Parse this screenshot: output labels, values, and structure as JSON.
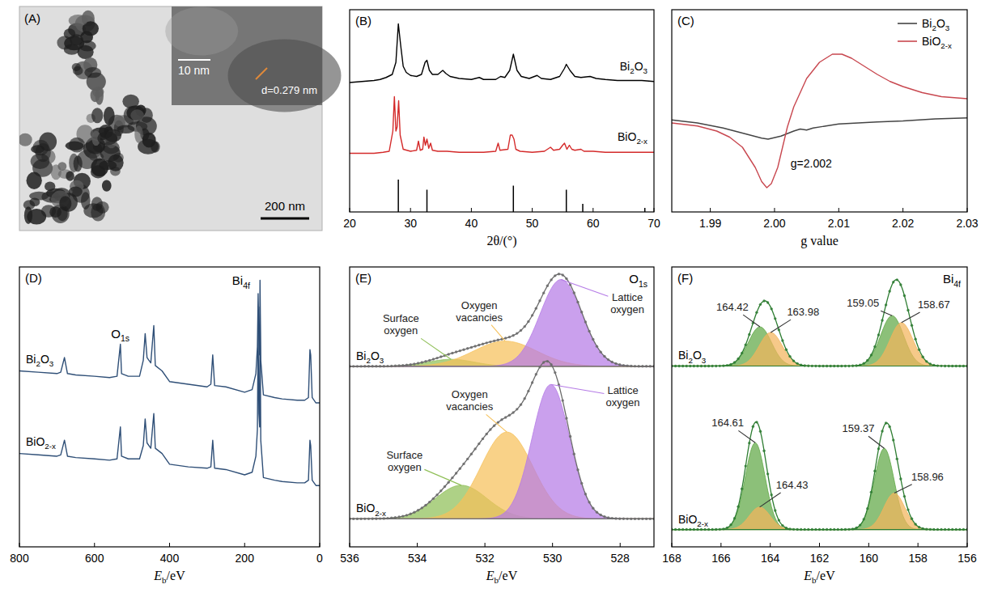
{
  "chart_data": [
    {
      "type": "micrograph",
      "title": "(A)",
      "annotations": [
        "200 nm",
        "10 nm",
        "d=0.279 nm"
      ]
    },
    {
      "type": "line",
      "title": "(B)",
      "x_label": "2θ/(°)",
      "xlim": [
        20,
        70
      ],
      "xticks": [
        20,
        30,
        40,
        50,
        60,
        70
      ],
      "ylim": [
        0,
        100
      ],
      "tick_labels": "x",
      "series": [
        {
          "name": "Bi2O3",
          "color": "#000000",
          "x": [
            20,
            22,
            24,
            25,
            26,
            27,
            27.6,
            28,
            28.4,
            28.8,
            29.3,
            30,
            31,
            31.8,
            32.4,
            32.7,
            33.1,
            33.6,
            34.5,
            35.3,
            35.8,
            36.5,
            38,
            40,
            41.3,
            42,
            44,
            44.8,
            45.5,
            46.3,
            46.9,
            47.5,
            48.2,
            49.5,
            50.8,
            51.5,
            53,
            54.5,
            55.3,
            55.6,
            56.2,
            57,
            58,
            59.5,
            60.5,
            62,
            64,
            66,
            68,
            70
          ],
          "values": [
            64,
            64.5,
            65,
            65.5,
            66.5,
            68,
            74,
            93,
            82,
            72,
            69,
            67.5,
            67,
            68,
            74,
            75,
            70,
            68,
            68,
            70,
            68.5,
            67,
            66,
            65.5,
            66.5,
            65.5,
            65.5,
            67,
            66.5,
            70,
            78,
            70,
            67,
            66,
            67.5,
            66,
            65.5,
            67,
            71,
            73,
            70,
            67,
            66.5,
            67,
            66,
            65.5,
            65,
            65,
            65,
            64.5
          ]
        },
        {
          "name": "BiO2-x",
          "color": "#d42a2a",
          "x": [
            20,
            22,
            24,
            25.5,
            26.5,
            27.1,
            27.35,
            27.6,
            27.8,
            28.05,
            28.3,
            28.8,
            30,
            31,
            31.3,
            31.6,
            32,
            32.2,
            32.45,
            32.7,
            33,
            33.3,
            33.6,
            34.5,
            36,
            38,
            40,
            42,
            44,
            44.4,
            44.7,
            46,
            46.4,
            46.7,
            47,
            47.3,
            48,
            50,
            52,
            53,
            53.5,
            54.5,
            55,
            55.3,
            55.7,
            56.1,
            56.5,
            57,
            58,
            58.5,
            60,
            62,
            64,
            66,
            68,
            70
          ],
          "values": [
            29,
            29,
            29,
            29.5,
            30,
            40,
            57,
            40,
            42,
            55,
            38,
            31,
            30,
            30.5,
            35,
            30.5,
            31,
            37,
            33,
            36,
            31.5,
            34,
            30.5,
            30,
            30,
            29.5,
            29.5,
            29.5,
            30,
            34,
            30.5,
            31,
            38,
            38,
            36,
            31,
            30,
            29.5,
            30,
            32,
            30.5,
            31,
            33,
            34,
            31,
            33,
            31,
            30.5,
            31,
            30,
            30,
            29.5,
            29.5,
            29.5,
            29.5,
            29.5
          ]
        },
        {
          "type": "bar",
          "color": "#000000",
          "x": [
            28.0,
            32.7,
            46.9,
            55.6,
            58.3,
            68.5
          ],
          "values": [
            16,
            11,
            13,
            11,
            4,
            2
          ]
        }
      ]
    },
    {
      "type": "line",
      "title": "(C)",
      "x_label": "g value",
      "xlim": [
        1.984,
        2.03
      ],
      "xticks": [
        1.99,
        {
          "value": 2,
          "label": "2.00"
        },
        2.01,
        2.02,
        2.03
      ],
      "ylim": [
        0,
        100
      ],
      "tick_labels": "x",
      "legend": "top-right",
      "annotations": [
        {
          "text": "g=2.002",
          "x": 2.002
        }
      ],
      "series": [
        {
          "name": "Bi2O3",
          "color": "#444444",
          "x": [
            1.984,
            1.988,
            1.992,
            1.995,
            1.998,
            1.999,
            2.001,
            2.003,
            2.004,
            2.005,
            2.006,
            2.008,
            2.01,
            2.013,
            2.016,
            2.02,
            2.025,
            2.03
          ],
          "values": [
            45.5,
            44,
            41.5,
            39,
            36.5,
            36,
            37.5,
            40,
            41,
            40.5,
            41.5,
            42.5,
            43.5,
            44,
            44.5,
            45,
            46,
            46.5
          ]
        },
        {
          "name": "BiO2-x",
          "color": "#c8474f",
          "x": [
            1.984,
            1.988,
            1.991,
            1.993,
            1.995,
            1.997,
            1.998,
            1.9988,
            1.9995,
            2.0005,
            2.002,
            2.003,
            2.005,
            2.007,
            2.009,
            2.0105,
            2.012,
            2.014,
            2.016,
            2.018,
            2.02,
            2.023,
            2.026,
            2.03
          ],
          "values": [
            44,
            42.5,
            40,
            37,
            32,
            22,
            15,
            12,
            14,
            22,
            42,
            52,
            66,
            74,
            78,
            78,
            76,
            72,
            68,
            64.5,
            62,
            59,
            57,
            56
          ]
        }
      ]
    },
    {
      "type": "line",
      "title": "(D)",
      "x_label": "Eb/eV",
      "xlim": [
        800,
        0
      ],
      "xticks": [
        800,
        600,
        400,
        200,
        0
      ],
      "ylim": [
        0,
        105
      ],
      "tick_labels": "x",
      "annotations": [
        {
          "text": "O1s",
          "x": 531
        },
        {
          "text": "Bi4f",
          "x": 164
        }
      ],
      "series": [
        {
          "name": "Bi2O3",
          "color": "#2f4f77",
          "x": [
            800,
            750,
            700,
            690,
            680,
            672,
            650,
            600,
            560,
            540,
            531,
            528,
            510,
            480,
            470,
            465,
            460,
            450,
            442,
            438,
            420,
            400,
            350,
            300,
            290,
            285,
            280,
            250,
            200,
            180,
            170,
            166,
            164,
            162,
            160,
            159,
            157,
            150,
            120,
            100,
            60,
            40,
            30,
            26,
            24,
            20,
            10,
            0
          ],
          "values": [
            66,
            65.5,
            65,
            65.5,
            71,
            65,
            64.5,
            64,
            63.5,
            64,
            76,
            65,
            64,
            64,
            70,
            80,
            71,
            69,
            83,
            68,
            66,
            62,
            61,
            60,
            61,
            72,
            60.5,
            60,
            58,
            59,
            65,
            75,
            95,
            78,
            72,
            100,
            70,
            57,
            56,
            55.5,
            55,
            55,
            56,
            74,
            72,
            56,
            54,
            54
          ]
        },
        {
          "name": "BiO2-x",
          "color": "#2f4f77",
          "x": [
            800,
            750,
            700,
            690,
            680,
            672,
            650,
            600,
            560,
            540,
            531,
            528,
            510,
            480,
            470,
            465,
            460,
            450,
            442,
            438,
            420,
            400,
            350,
            300,
            290,
            285,
            280,
            250,
            200,
            180,
            170,
            166,
            164,
            162,
            160,
            159,
            157,
            150,
            120,
            100,
            60,
            40,
            30,
            26,
            24,
            20,
            10,
            0
          ],
          "values": [
            35,
            34.5,
            34,
            34.5,
            40,
            34,
            33.5,
            33,
            32.5,
            33,
            45,
            34,
            33,
            33,
            38,
            48,
            39,
            37,
            50,
            37,
            35,
            31,
            30,
            29.5,
            30,
            40,
            29.5,
            29,
            27,
            28,
            34,
            44,
            82,
            50,
            45,
            90,
            40,
            26,
            25,
            24.5,
            24,
            24,
            25,
            40,
            38,
            25,
            23,
            23
          ]
        }
      ]
    },
    {
      "type": "xps_fit",
      "title": "(E)",
      "annotations": [
        "O1s"
      ],
      "x_label": "Eb/eV",
      "xlim": [
        536,
        527
      ],
      "xticks": [
        536,
        534,
        532,
        530,
        528
      ],
      "ylim": [
        0,
        100
      ],
      "tick_labels": "x",
      "spectra": [
        {
          "name": "Bi2O3",
          "color": "#6b6b6b",
          "marker": "circle",
          "baseline": 64.5,
          "components": [
            {
              "name": "Surface oxygen",
              "center": 533.0,
              "height": 2.5,
              "fwhm": 1.6,
              "color": "#8fbf57"
            },
            {
              "name": "Oxygen vacancies",
              "center": 531.4,
              "height": 9,
              "fwhm": 2.2,
              "color": "#f6c15a"
            },
            {
              "name": "Lattice oxygen",
              "center": 529.75,
              "height": 31,
              "fwhm": 1.45,
              "color": "#b57be6"
            }
          ]
        },
        {
          "name": "BiO2-x",
          "color": "#6b6b6b",
          "marker": "circle",
          "baseline": 10,
          "components": [
            {
              "name": "Surface oxygen",
              "center": 532.7,
              "height": 12,
              "fwhm": 1.8,
              "color": "#8fbf57"
            },
            {
              "name": "Oxygen vacancies",
              "center": 531.35,
              "height": 31,
              "fwhm": 1.8,
              "color": "#f6c15a"
            },
            {
              "name": "Lattice oxygen",
              "center": 530.05,
              "height": 48,
              "fwhm": 1.3,
              "color": "#b57be6"
            }
          ]
        }
      ]
    },
    {
      "type": "xps_fit",
      "title": "(F)",
      "annotations": [
        "Bi4f"
      ],
      "x_label": "Eb/eV",
      "xlim": [
        168,
        156
      ],
      "xticks": [
        168,
        166,
        164,
        162,
        160,
        158,
        156
      ],
      "ylim": [
        0,
        100
      ],
      "tick_labels": "x",
      "data_labels": true,
      "spectra": [
        {
          "name": "Bi2O3",
          "color": "#2e7d32",
          "marker": "circle",
          "baseline": 64.6,
          "components": [
            {
              "center": 164.42,
              "height": 14,
              "fwhm": 1.1,
              "color": "#5fa845"
            },
            {
              "center": 163.98,
              "height": 12,
              "fwhm": 1.1,
              "color": "#f3b45c"
            },
            {
              "center": 159.05,
              "height": 18,
              "fwhm": 1.1,
              "color": "#5fa845"
            },
            {
              "center": 158.67,
              "height": 15.5,
              "fwhm": 1.1,
              "color": "#f3b45c"
            }
          ]
        },
        {
          "name": "BiO2-x",
          "color": "#2e7d32",
          "marker": "circle",
          "baseline": 6.2,
          "components": [
            {
              "center": 164.61,
              "height": 31,
              "fwhm": 0.95,
              "color": "#5fa845"
            },
            {
              "center": 164.43,
              "height": 8,
              "fwhm": 1.0,
              "color": "#f3b45c"
            },
            {
              "center": 159.37,
              "height": 29,
              "fwhm": 0.95,
              "color": "#5fa845"
            },
            {
              "center": 158.96,
              "height": 13,
              "fwhm": 1.0,
              "color": "#f3b45c"
            }
          ]
        }
      ]
    }
  ]
}
